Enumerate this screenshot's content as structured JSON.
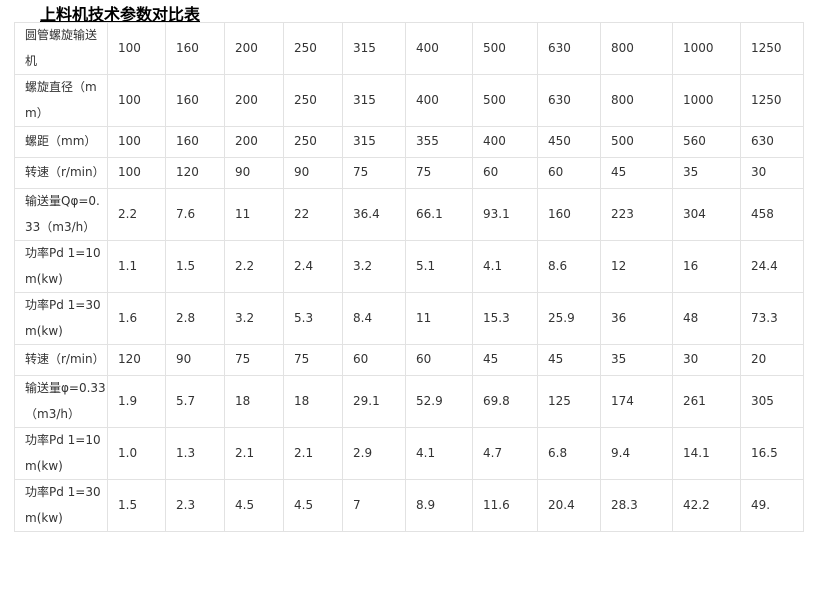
{
  "title": "上料机技术参数对比表",
  "table": {
    "rows": [
      [
        "圆管螺旋输送机",
        "100",
        "160",
        "200",
        "250",
        "315",
        "400",
        "500",
        "630",
        "800",
        "1000",
        "1250"
      ],
      [
        "螺旋直径（mm）",
        "100",
        "160",
        "200",
        "250",
        "315",
        "400",
        "500",
        "630",
        "800",
        "1000",
        "1250"
      ],
      [
        "螺距（mm）",
        "100",
        "160",
        "200",
        "250",
        "315",
        "355",
        "400",
        "450",
        "500",
        "560",
        "630"
      ],
      [
        "转速（r/min）",
        "100",
        "120",
        "90",
        "90",
        "75",
        "75",
        "60",
        "60",
        "45",
        "35",
        "30"
      ],
      [
        "输送量Qφ=0.33（m3/h）",
        "2.2",
        "7.6",
        "11",
        "22",
        "36.4",
        "66.1",
        "93.1",
        "160",
        "223",
        "304",
        "458"
      ],
      [
        "功率Pd 1=10m(kw)",
        "1.1",
        "1.5",
        "2.2",
        "2.4",
        "3.2",
        "5.1",
        "4.1",
        "8.6",
        "12",
        "16",
        "24.4"
      ],
      [
        "功率Pd 1=30m(kw)",
        "1.6",
        "2.8",
        "3.2",
        "5.3",
        "8.4",
        "11",
        "15.3",
        "25.9",
        "36",
        "48",
        "73.3"
      ],
      [
        "转速（r/min）",
        "120",
        "90",
        "75",
        "75",
        "60",
        "60",
        "45",
        "45",
        "35",
        "30",
        "20"
      ],
      [
        "输送量φ=0.33（m3/h）",
        "1.9",
        "5.7",
        "18",
        "18",
        "29.1",
        "52.9",
        "69.8",
        "125",
        "174",
        "261",
        "305"
      ],
      [
        "功率Pd 1=10m(kw)",
        "1.0",
        "1.3",
        "2.1",
        "2.1",
        "2.9",
        "4.1",
        "4.7",
        "6.8",
        "9.4",
        "14.1",
        "16.5"
      ],
      [
        "功率Pd 1=30m(kw)",
        "1.5",
        "2.3",
        "4.5",
        "4.5",
        "7",
        "8.9",
        "11.6",
        "20.4",
        "28.3",
        "42.2",
        "49."
      ]
    ]
  }
}
